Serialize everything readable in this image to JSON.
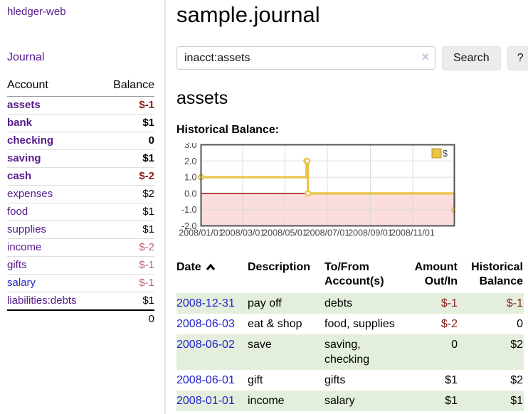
{
  "sidebar": {
    "brand": "hledger-web",
    "nav": {
      "journal": "Journal"
    },
    "table": {
      "col_account": "Account",
      "col_balance": "Balance",
      "accounts": [
        {
          "name": "assets",
          "indent": 1,
          "bold": true,
          "balance": "$-1"
        },
        {
          "name": "bank",
          "indent": 2,
          "bold": true,
          "balance": "$1"
        },
        {
          "name": "checking",
          "indent": 3,
          "bold": true,
          "balance": "0"
        },
        {
          "name": "saving",
          "indent": 3,
          "bold": true,
          "balance": "$1"
        },
        {
          "name": "cash",
          "indent": 2,
          "bold": true,
          "balance": "$-2"
        },
        {
          "name": "expenses",
          "indent": 1,
          "bold": false,
          "balance": "$2"
        },
        {
          "name": "food",
          "indent": 2,
          "bold": false,
          "balance": "$1"
        },
        {
          "name": "supplies",
          "indent": 2,
          "bold": false,
          "balance": "$1"
        },
        {
          "name": "income",
          "indent": 1,
          "bold": false,
          "balance": "$-2"
        },
        {
          "name": "gifts",
          "indent": 2,
          "bold": false,
          "balance": "$-1"
        },
        {
          "name": "salary",
          "indent": 2,
          "bold": false,
          "balance": "$-1",
          "link_color": "blue"
        },
        {
          "name": "liabilities:debts",
          "indent": 1,
          "bold": false,
          "balance": "$1"
        }
      ],
      "total": "0"
    }
  },
  "main": {
    "title": "sample.journal",
    "search": {
      "value": "inacct:assets",
      "clear_icon": "×",
      "search_button": "Search",
      "help_button": "?"
    },
    "account_heading": "assets",
    "chart_heading": "Historical Balance:"
  },
  "chart_data": {
    "type": "line",
    "style": "steps",
    "title": "Historical Balance:",
    "series": [
      {
        "name": "$",
        "color": "#e9c349",
        "points": [
          [
            "2008-01-01",
            1
          ],
          [
            "2008-06-01",
            2
          ],
          [
            "2008-06-02",
            2
          ],
          [
            "2008-06-03",
            0
          ],
          [
            "2008-12-31",
            -1
          ]
        ]
      }
    ],
    "xlim": [
      "2008-01-01",
      "2008-12-31"
    ],
    "ylim": [
      -2,
      3
    ],
    "yticks": [
      -2,
      -1,
      0,
      1,
      2,
      3
    ],
    "ytick_labels": [
      "-2.0",
      "-1.0",
      "0.0",
      "1.0",
      "2.0",
      "3.0"
    ],
    "xticks": [
      "2008/01/01",
      "2008/03/01",
      "2008/05/01",
      "2008/07/01",
      "2008/09/01",
      "2008/11/01"
    ],
    "grid": true,
    "legend_position": "top-right",
    "negative_region": {
      "below": 0,
      "fill": "#fbdddd",
      "line_color": "#a32222"
    }
  },
  "register": {
    "columns": {
      "date": "Date",
      "sort_icon": "chevron-up",
      "description": "Description",
      "tofrom_line1": "To/From",
      "tofrom_line2": "Account(s)",
      "amount_line1": "Amount",
      "amount_line2": "Out/In",
      "balance_line1": "Historical",
      "balance_line2": "Balance"
    },
    "rows": [
      {
        "date": "2008-12-31",
        "description": "pay off",
        "accounts": "debts",
        "amount": "$-1",
        "balance": "$-1"
      },
      {
        "date": "2008-06-03",
        "description": "eat & shop",
        "accounts": "food, supplies",
        "amount": "$-2",
        "balance": "0"
      },
      {
        "date": "2008-06-02",
        "description": "save",
        "accounts": "saving, checking",
        "amount": "0",
        "balance": "$2"
      },
      {
        "date": "2008-06-01",
        "description": "gift",
        "accounts": "gifts",
        "amount": "$1",
        "balance": "$2"
      },
      {
        "date": "2008-01-01",
        "description": "income",
        "accounts": "salary",
        "amount": "$1",
        "balance": "$1"
      }
    ]
  },
  "colors": {
    "link_purple": "#551a8b",
    "link_blue": "#2222cc",
    "negative_strong": "#8b1d1d",
    "negative_soft": "#c05f67",
    "row_stripe_green": "#e3efdc",
    "chart_line": "#e9c349",
    "chart_negative_fill": "#fbdddd",
    "chart_zero_line": "#a32222",
    "chart_border": "#545454"
  }
}
